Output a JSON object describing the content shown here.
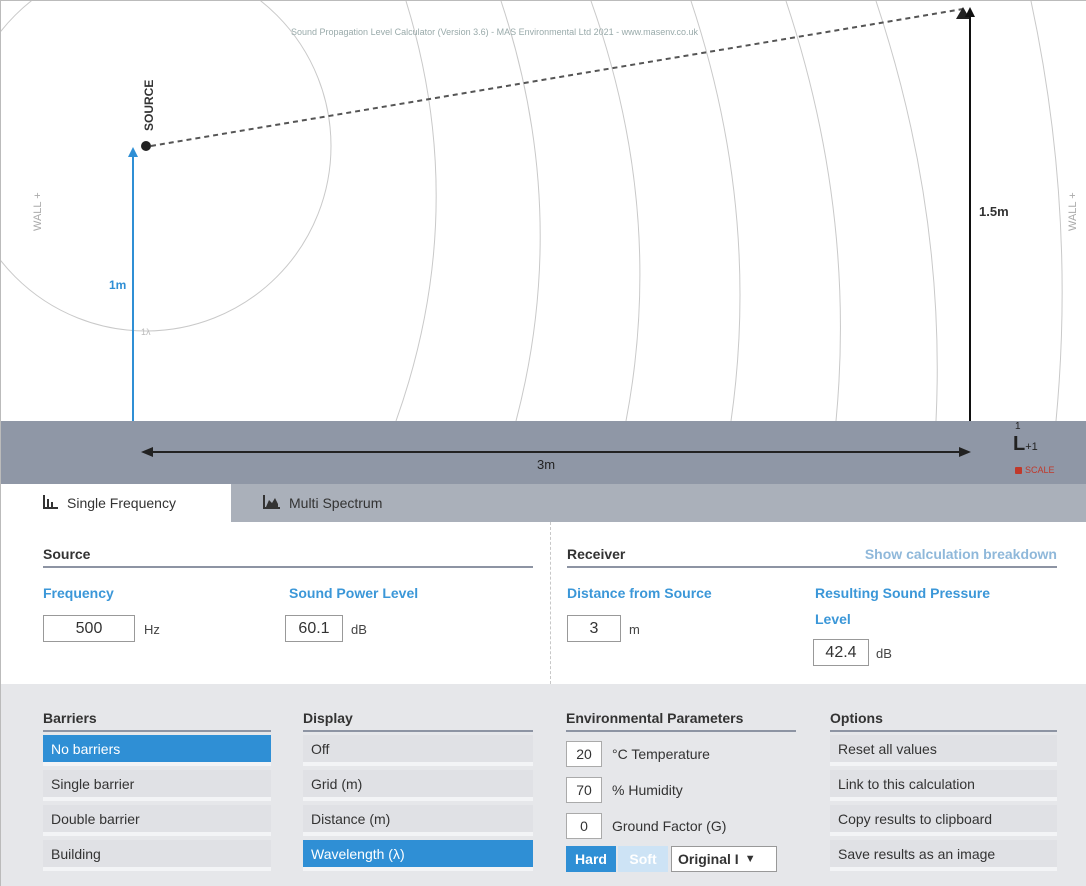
{
  "diagram": {
    "header_text": "Sound Propagation Level Calculator (Version 3.6) - MAS Environmental Ltd 2021 - www.masenv.co.uk",
    "source_label": "SOURCE",
    "source_height": "1m",
    "receiver_height": "1.5m",
    "distance": "3m",
    "wall_left": "WALL +",
    "wall_right": "WALL +",
    "arc_label": "1λ",
    "scale_num": "1",
    "scale_ruler": "L",
    "scale_sub": "+1",
    "scale_label": "SCALE"
  },
  "tabs": [
    {
      "label": "Single Frequency",
      "icon": "bar-chart-icon"
    },
    {
      "label": "Multi Spectrum",
      "icon": "area-chart-icon"
    }
  ],
  "source": {
    "header": "Source",
    "frequency_label": "Frequency",
    "frequency_value": "500",
    "frequency_unit": "Hz",
    "power_label": "Sound Power Level",
    "power_value": "60.1",
    "power_unit": "dB"
  },
  "receiver": {
    "header": "Receiver",
    "breakdown_link": "Show calculation breakdown",
    "distance_label": "Distance from Source",
    "distance_value": "3",
    "distance_unit": "m",
    "result_label_1": "Resulting Sound Pressure",
    "result_label_2": "Level",
    "result_value": "42.4",
    "result_unit": "dB"
  },
  "barriers": {
    "header": "Barriers",
    "items": [
      "No barriers",
      "Single barrier",
      "Double barrier",
      "Building"
    ],
    "selected": 0
  },
  "display": {
    "header": "Display",
    "items": [
      "Off",
      "Grid (m)",
      "Distance (m)",
      "Wavelength (λ)"
    ],
    "selected": 3
  },
  "environment": {
    "header": "Environmental Parameters",
    "temperature_value": "20",
    "temperature_label": "°C Temperature",
    "humidity_value": "70",
    "humidity_label": "% Humidity",
    "ground_value": "0",
    "ground_label": "Ground Factor (G)",
    "hard_label": "Hard",
    "soft_label": "Soft",
    "ground_select": "Original I"
  },
  "options": {
    "header": "Options",
    "items": [
      "Reset all values",
      "Link to this calculation",
      "Copy results to clipboard",
      "Save results as an image"
    ]
  },
  "colors": {
    "accent": "#2f8fd5",
    "ground": "#8f97a6",
    "panel": "#e6e7ea"
  }
}
